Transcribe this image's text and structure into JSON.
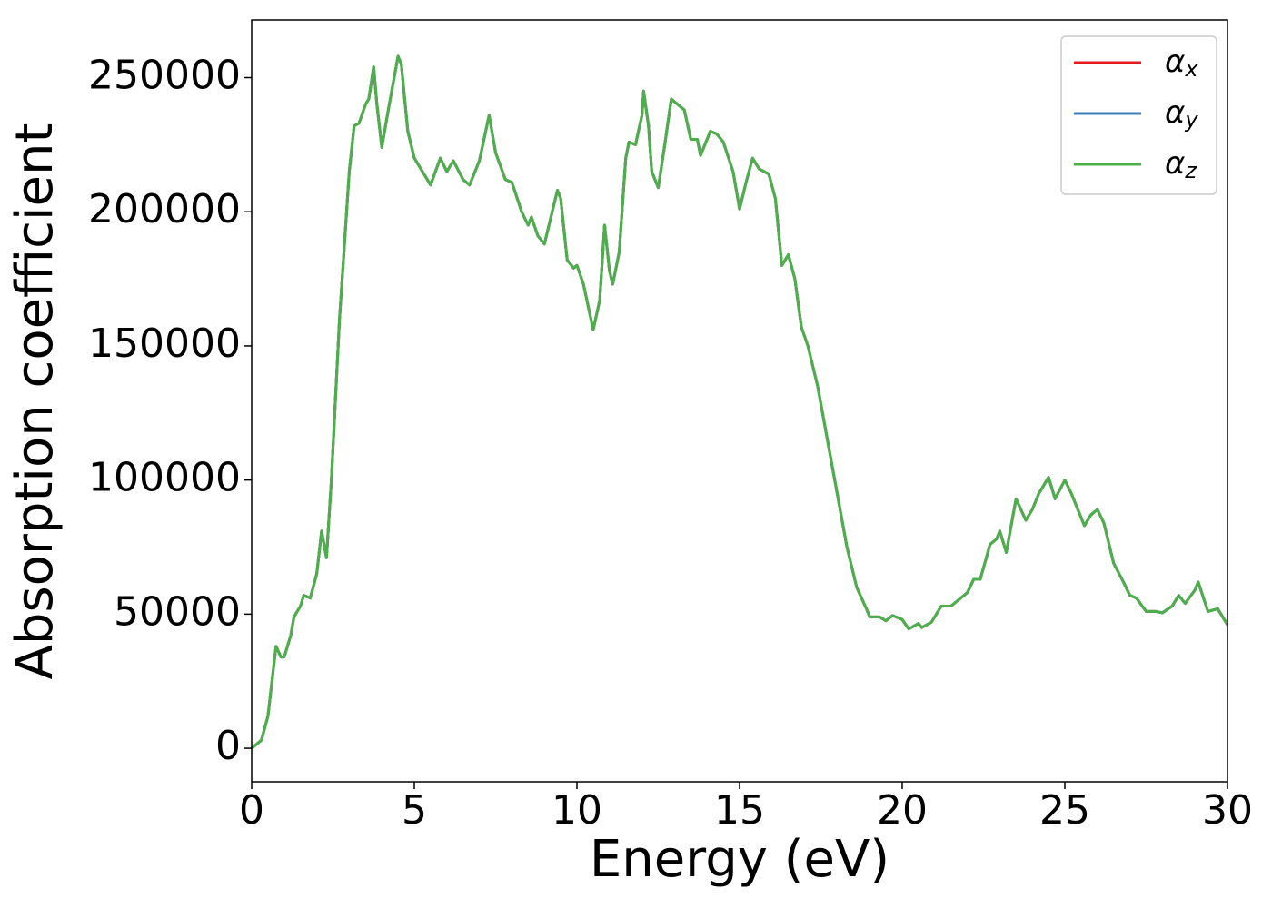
{
  "chart_data": {
    "type": "line",
    "xlabel": "Energy (eV)",
    "ylabel": "Absorption coefficient",
    "x": [
      0,
      0.3,
      0.5,
      0.7,
      0.75,
      0.9,
      1.0,
      1.2,
      1.3,
      1.5,
      1.6,
      1.8,
      2.0,
      2.15,
      2.3,
      2.45,
      2.7,
      3.0,
      3.15,
      3.3,
      3.5,
      3.6,
      3.75,
      3.85,
      4.0,
      4.2,
      4.5,
      4.6,
      4.8,
      5.0,
      5.3,
      5.5,
      5.8,
      6.0,
      6.2,
      6.5,
      6.7,
      7.0,
      7.3,
      7.5,
      7.8,
      8.0,
      8.3,
      8.5,
      8.6,
      8.8,
      9.0,
      9.2,
      9.4,
      9.5,
      9.7,
      9.9,
      10.0,
      10.2,
      10.5,
      10.7,
      10.85,
      11.0,
      11.1,
      11.3,
      11.5,
      11.6,
      11.8,
      12.0,
      12.05,
      12.2,
      12.3,
      12.5,
      12.7,
      12.9,
      13.1,
      13.3,
      13.5,
      13.7,
      13.8,
      14.1,
      14.3,
      14.5,
      14.8,
      15.0,
      15.2,
      15.4,
      15.6,
      15.9,
      16.1,
      16.3,
      16.5,
      16.7,
      16.9,
      17.1,
      17.4,
      17.7,
      18.0,
      18.3,
      18.6,
      18.9,
      19.0,
      19.3,
      19.5,
      19.7,
      20.0,
      20.2,
      20.5,
      20.6,
      20.9,
      21.2,
      21.5,
      21.8,
      22.0,
      22.2,
      22.4,
      22.7,
      22.9,
      23.0,
      23.2,
      23.5,
      23.8,
      24.0,
      24.2,
      24.5,
      24.7,
      25.0,
      25.2,
      25.4,
      25.6,
      25.8,
      26.0,
      26.2,
      26.5,
      26.8,
      27.0,
      27.2,
      27.5,
      27.8,
      28.0,
      28.3,
      28.5,
      28.7,
      29.0,
      29.1,
      29.4,
      29.7,
      30.0
    ],
    "series": [
      {
        "name": "αx",
        "color": "#e41a1c",
        "values": [
          0,
          3000,
          12000,
          33000,
          38000,
          34000,
          34000,
          42000,
          49000,
          53000,
          57000,
          56000,
          65000,
          81000,
          71000,
          100000,
          160000,
          215000,
          232000,
          233000,
          240000,
          242000,
          254000,
          240000,
          224000,
          238000,
          258000,
          255000,
          230000,
          220000,
          214000,
          210000,
          220000,
          215000,
          219000,
          212000,
          210000,
          219000,
          236000,
          222000,
          212000,
          211000,
          200000,
          195000,
          198000,
          191000,
          188000,
          198000,
          208000,
          205000,
          182000,
          179000,
          180000,
          173000,
          156000,
          167000,
          195000,
          178000,
          173000,
          185000,
          220000,
          226000,
          225000,
          236000,
          245000,
          232000,
          215000,
          209000,
          225000,
          242000,
          240000,
          238000,
          227000,
          227000,
          221000,
          230000,
          229000,
          226000,
          215000,
          201000,
          211000,
          220000,
          216000,
          214000,
          205000,
          180000,
          184000,
          175000,
          157000,
          150000,
          135000,
          115000,
          95000,
          75000,
          60000,
          52000,
          49000,
          49000,
          47500,
          49500,
          48000,
          44500,
          46500,
          45000,
          47000,
          53000,
          53000,
          56000,
          58000,
          63000,
          63000,
          76000,
          78000,
          81000,
          73000,
          93000,
          85000,
          89000,
          95000,
          101000,
          93000,
          100000,
          95000,
          89000,
          83000,
          87000,
          89000,
          84000,
          69000,
          62000,
          57000,
          56000,
          51000,
          51000,
          50500,
          53000,
          57000,
          54000,
          59000,
          62000,
          51000,
          52000,
          46000
        ]
      },
      {
        "name": "αy",
        "color": "#377eb8",
        "values": [
          0,
          3000,
          12000,
          33000,
          38000,
          34000,
          34000,
          42000,
          49000,
          53000,
          57000,
          56000,
          65000,
          81000,
          71000,
          100000,
          160000,
          215000,
          232000,
          233000,
          240000,
          242000,
          254000,
          240000,
          224000,
          238000,
          258000,
          255000,
          230000,
          220000,
          214000,
          210000,
          220000,
          215000,
          219000,
          212000,
          210000,
          219000,
          236000,
          222000,
          212000,
          211000,
          200000,
          195000,
          198000,
          191000,
          188000,
          198000,
          208000,
          205000,
          182000,
          179000,
          180000,
          173000,
          156000,
          167000,
          195000,
          178000,
          173000,
          185000,
          220000,
          226000,
          225000,
          236000,
          245000,
          232000,
          215000,
          209000,
          225000,
          242000,
          240000,
          238000,
          227000,
          227000,
          221000,
          230000,
          229000,
          226000,
          215000,
          201000,
          211000,
          220000,
          216000,
          214000,
          205000,
          180000,
          184000,
          175000,
          157000,
          150000,
          135000,
          115000,
          95000,
          75000,
          60000,
          52000,
          49000,
          49000,
          47500,
          49500,
          48000,
          44500,
          46500,
          45000,
          47000,
          53000,
          53000,
          56000,
          58000,
          63000,
          63000,
          76000,
          78000,
          81000,
          73000,
          93000,
          85000,
          89000,
          95000,
          101000,
          93000,
          100000,
          95000,
          89000,
          83000,
          87000,
          89000,
          84000,
          69000,
          62000,
          57000,
          56000,
          51000,
          51000,
          50500,
          53000,
          57000,
          54000,
          59000,
          62000,
          51000,
          52000,
          46000
        ]
      },
      {
        "name": "αz",
        "color": "#4daf4a",
        "values": [
          0,
          3000,
          12000,
          33000,
          38000,
          34000,
          34000,
          42000,
          49000,
          53000,
          57000,
          56000,
          65000,
          81000,
          71000,
          100000,
          160000,
          215000,
          232000,
          233000,
          240000,
          242000,
          254000,
          240000,
          224000,
          238000,
          258000,
          255000,
          230000,
          220000,
          214000,
          210000,
          220000,
          215000,
          219000,
          212000,
          210000,
          219000,
          236000,
          222000,
          212000,
          211000,
          200000,
          195000,
          198000,
          191000,
          188000,
          198000,
          208000,
          205000,
          182000,
          179000,
          180000,
          173000,
          156000,
          167000,
          195000,
          178000,
          173000,
          185000,
          220000,
          226000,
          225000,
          236000,
          245000,
          232000,
          215000,
          209000,
          225000,
          242000,
          240000,
          238000,
          227000,
          227000,
          221000,
          230000,
          229000,
          226000,
          215000,
          201000,
          211000,
          220000,
          216000,
          214000,
          205000,
          180000,
          184000,
          175000,
          157000,
          150000,
          135000,
          115000,
          95000,
          75000,
          60000,
          52000,
          49000,
          49000,
          47500,
          49500,
          48000,
          44500,
          46500,
          45000,
          47000,
          53000,
          53000,
          56000,
          58000,
          63000,
          63000,
          76000,
          78000,
          81000,
          73000,
          93000,
          85000,
          89000,
          95000,
          101000,
          93000,
          100000,
          95000,
          89000,
          83000,
          87000,
          89000,
          84000,
          69000,
          62000,
          57000,
          56000,
          51000,
          51000,
          50500,
          53000,
          57000,
          54000,
          59000,
          62000,
          51000,
          52000,
          46000
        ]
      }
    ],
    "xlim": [
      0,
      30
    ],
    "xticks": [
      0,
      5,
      10,
      15,
      20,
      25,
      30
    ],
    "ylim": [
      -12500,
      271500
    ],
    "yticks": [
      0,
      50000,
      100000,
      150000,
      200000,
      250000
    ],
    "grid": false,
    "legend": "upper right"
  }
}
